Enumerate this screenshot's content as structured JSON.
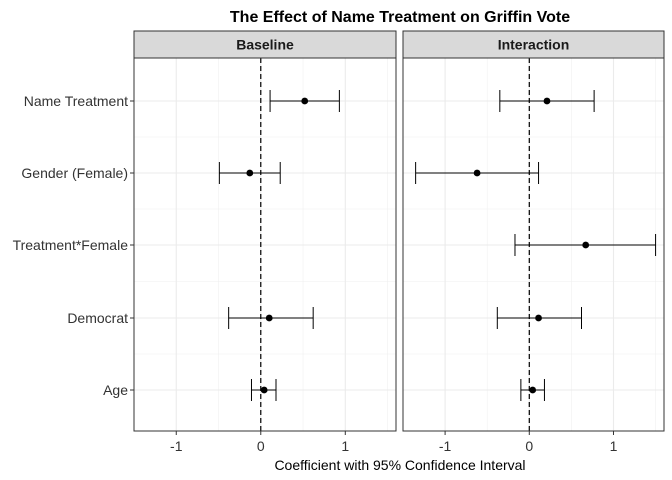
{
  "chart_data": {
    "type": "scatter",
    "title": "The Effect of Name Treatment on Griffin Vote",
    "xlabel": "Coefficient with 95% Confidence Interval",
    "ylabel": "",
    "xlim": [
      -1.5,
      1.6
    ],
    "x_ticks": [
      -1,
      0,
      1
    ],
    "x_tick_labels": [
      "-1",
      "0",
      "1"
    ],
    "reference_line": {
      "x": 0,
      "style": "dashed"
    },
    "grid": true,
    "categories": [
      "Name Treatment",
      "Gender (Female)",
      "Treatment*Female",
      "Democrat",
      "Age"
    ],
    "panels": [
      {
        "name": "Baseline",
        "points": [
          {
            "term": "Name Treatment",
            "estimate": 0.52,
            "low": 0.11,
            "high": 0.93
          },
          {
            "term": "Gender (Female)",
            "estimate": -0.13,
            "low": -0.49,
            "high": 0.23
          },
          {
            "term": "Democrat",
            "estimate": 0.1,
            "low": -0.38,
            "high": 0.62
          },
          {
            "term": "Age",
            "estimate": 0.04,
            "low": -0.11,
            "high": 0.18
          }
        ]
      },
      {
        "name": "Interaction",
        "points": [
          {
            "term": "Name Treatment",
            "estimate": 0.21,
            "low": -0.35,
            "high": 0.77
          },
          {
            "term": "Gender (Female)",
            "estimate": -0.62,
            "low": -1.35,
            "high": 0.11
          },
          {
            "term": "Treatment*Female",
            "estimate": 0.67,
            "low": -0.17,
            "high": 1.5
          },
          {
            "term": "Democrat",
            "estimate": 0.11,
            "low": -0.38,
            "high": 0.62
          },
          {
            "term": "Age",
            "estimate": 0.04,
            "low": -0.1,
            "high": 0.18
          }
        ]
      }
    ]
  }
}
